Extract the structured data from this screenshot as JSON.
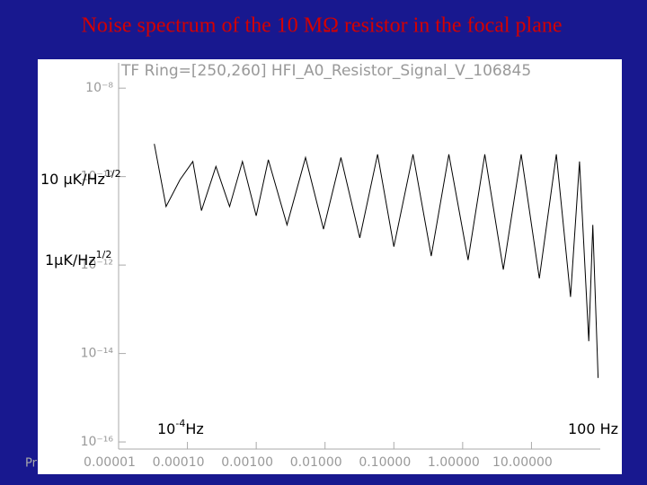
{
  "slide_title": "Noise spectrum of the 10 MΩ resistor in the focal plane",
  "footer": "Pr",
  "chart_data": {
    "type": "line",
    "title": "TF Ring=[250,260] HFI_A0_Resistor_Signal_V_106845",
    "log_x": true,
    "log_y": true,
    "color": "#000000",
    "x": [
      3.3e-05,
      4.9e-05,
      7.8e-05,
      0.00012,
      0.00016,
      0.00026,
      0.00041,
      0.00063,
      0.001,
      0.0015,
      0.0028,
      0.0052,
      0.0095,
      0.017,
      0.032,
      0.058,
      0.1,
      0.19,
      0.35,
      0.63,
      1.2,
      2.1,
      3.9,
      7.1,
      13,
      23,
      37,
      50,
      68,
      78,
      93
    ],
    "values": [
      5.5e-10,
      2.1e-11,
      8.5e-11,
      2.2e-10,
      1.7e-11,
      1.7e-10,
      2.1e-11,
      2.2e-10,
      1.3e-11,
      2.4e-10,
      8.1e-12,
      2.7e-10,
      6.5e-12,
      2.7e-10,
      4.1e-12,
      3.2e-10,
      2.6e-12,
      3.2e-10,
      1.6e-12,
      3.2e-10,
      1.3e-12,
      3.2e-10,
      7.9e-13,
      3.2e-10,
      5e-13,
      3.2e-10,
      1.9e-13,
      2.2e-10,
      1.9e-14,
      8.1e-12,
      2.8e-15
    ],
    "xlim": [
      1e-05,
      100
    ],
    "ylim": [
      6.9e-17,
      3.4e-08
    ],
    "xticks": [
      {
        "value": 1e-05,
        "label": "0.00001"
      },
      {
        "value": 0.0001,
        "label": "0.00010"
      },
      {
        "value": 0.001,
        "label": "0.00100"
      },
      {
        "value": 0.01,
        "label": "0.01000"
      },
      {
        "value": 0.1,
        "label": "0.10000"
      },
      {
        "value": 1,
        "label": "1.00000"
      },
      {
        "value": 10,
        "label": "10.00000"
      }
    ],
    "yticks": [
      {
        "value": 1e-08,
        "label": "10⁻⁸"
      },
      {
        "value": 1e-10,
        "label": "10⁻¹⁰"
      },
      {
        "value": 1e-12,
        "label": "10⁻¹²"
      },
      {
        "value": 1e-14,
        "label": "10⁻¹⁴"
      },
      {
        "value": 1e-16,
        "label": "10⁻¹⁶"
      }
    ],
    "annotations": [
      {
        "text": "10 µK/Hz",
        "sup": "1/2"
      },
      {
        "text": "1µK/Hz",
        "sup": "1/2"
      },
      {
        "text": "10",
        "sup": "-4",
        "after": "Hz"
      },
      {
        "text": "100 Hz"
      }
    ]
  }
}
